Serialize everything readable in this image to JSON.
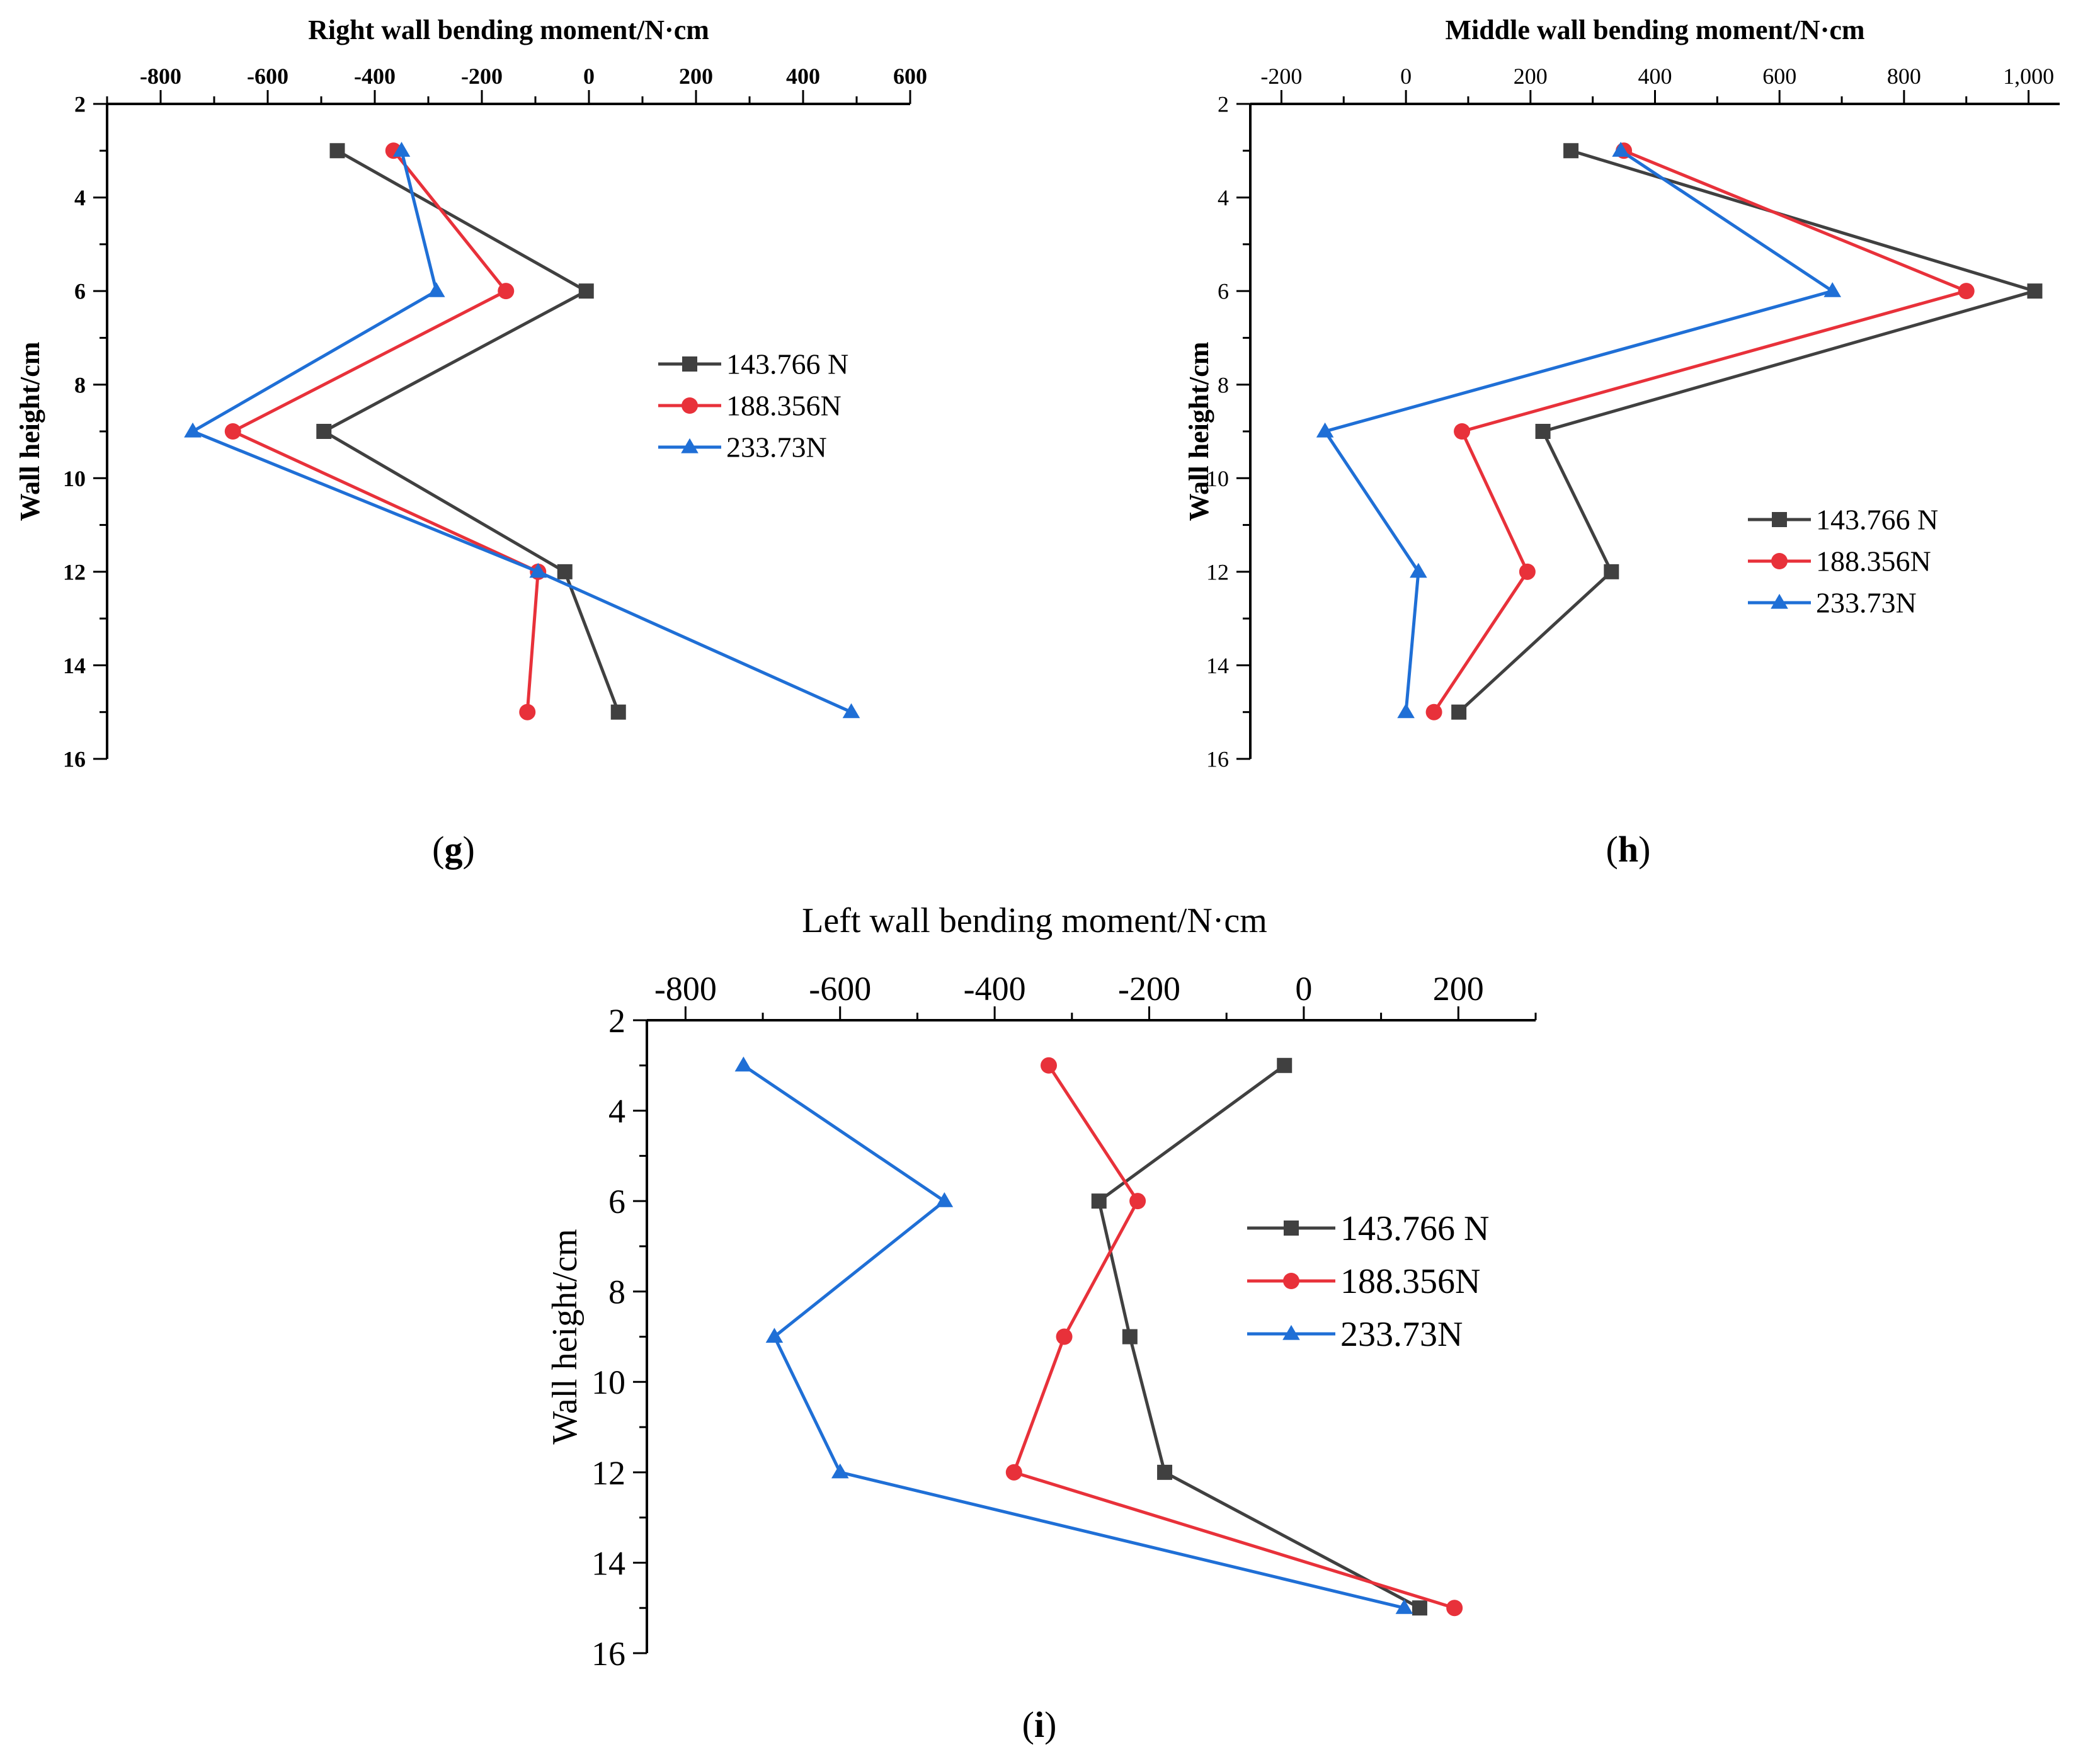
{
  "chart_data": [
    {
      "id": "g",
      "type": "line",
      "panel_label": "g",
      "title": "Right wall bending moment/N·cm",
      "xlabel": "Right wall bending moment/N·cm",
      "ylabel": "Wall height/cm",
      "xlim": [
        -900,
        600
      ],
      "ylim": [
        2,
        16
      ],
      "x_ticks": [
        -800,
        -600,
        -400,
        -200,
        0,
        200,
        400,
        600
      ],
      "x_tick_labels": [
        "-800",
        "-600",
        "-400",
        "-200",
        "0",
        "200",
        "400",
        "600"
      ],
      "y_ticks": [
        2,
        4,
        6,
        8,
        10,
        12,
        14,
        16
      ],
      "y_tick_labels": [
        "2",
        "4",
        "6",
        "8",
        "10",
        "12",
        "14",
        "16"
      ],
      "grid": false,
      "legend_position": "right-middle",
      "series": [
        {
          "name": "143.766 N",
          "color": "#404040",
          "marker": "square",
          "points": [
            [
              -470,
              3
            ],
            [
              -5,
              6
            ],
            [
              -495,
              9
            ],
            [
              -45,
              12
            ],
            [
              55,
              15
            ]
          ]
        },
        {
          "name": "188.356N",
          "color": "#e8313a",
          "marker": "circle",
          "points": [
            [
              -365,
              3
            ],
            [
              -155,
              6
            ],
            [
              -665,
              9
            ],
            [
              -95,
              12
            ],
            [
              -115,
              15
            ]
          ]
        },
        {
          "name": "233.73N",
          "color": "#1f6fd6",
          "marker": "triangle",
          "points": [
            [
              -350,
              3
            ],
            [
              -285,
              6
            ],
            [
              -740,
              9
            ],
            [
              -95,
              12
            ],
            [
              490,
              15
            ]
          ]
        }
      ]
    },
    {
      "id": "h",
      "type": "line",
      "panel_label": "h",
      "title": "Middle wall bending moment/N·cm",
      "xlabel": "Middle wall bending moment/N·cm",
      "ylabel": "Wall height/cm",
      "xlim": [
        -250,
        1050
      ],
      "ylim": [
        2,
        16
      ],
      "x_ticks": [
        -200,
        0,
        200,
        400,
        600,
        800,
        1000
      ],
      "x_tick_labels": [
        "-200",
        "0",
        "200",
        "400",
        "600",
        "800",
        "1,000"
      ],
      "y_ticks": [
        2,
        4,
        6,
        8,
        10,
        12,
        14,
        16
      ],
      "y_tick_labels": [
        "2",
        "4",
        "6",
        "8",
        "10",
        "12",
        "14",
        "16"
      ],
      "grid": false,
      "legend_position": "right-lower",
      "series": [
        {
          "name": "143.766 N",
          "color": "#404040",
          "marker": "square",
          "points": [
            [
              265,
              3
            ],
            [
              1010,
              6
            ],
            [
              220,
              9
            ],
            [
              330,
              12
            ],
            [
              85,
              15
            ]
          ]
        },
        {
          "name": "188.356N",
          "color": "#e8313a",
          "marker": "circle",
          "points": [
            [
              350,
              3
            ],
            [
              900,
              6
            ],
            [
              90,
              9
            ],
            [
              195,
              12
            ],
            [
              45,
              15
            ]
          ]
        },
        {
          "name": "233.73N",
          "color": "#1f6fd6",
          "marker": "triangle",
          "points": [
            [
              345,
              3
            ],
            [
              685,
              6
            ],
            [
              -130,
              9
            ],
            [
              20,
              12
            ],
            [
              0,
              15
            ]
          ]
        }
      ]
    },
    {
      "id": "i",
      "type": "line",
      "panel_label": "i",
      "title": "Left wall bending moment/N·cm",
      "xlabel": "Left wall bending moment/N·cm",
      "ylabel": "Wall height/cm",
      "xlim": [
        -850,
        300
      ],
      "ylim": [
        2,
        16
      ],
      "x_ticks": [
        -800,
        -600,
        -400,
        -200,
        0,
        200
      ],
      "x_tick_labels": [
        "-800",
        "-600",
        "-400",
        "-200",
        "0",
        "200"
      ],
      "y_ticks": [
        2,
        4,
        6,
        8,
        10,
        12,
        14,
        16
      ],
      "y_tick_labels": [
        "2",
        "4",
        "6",
        "8",
        "10",
        "12",
        "14",
        "16"
      ],
      "grid": false,
      "legend_position": "right-middle",
      "series": [
        {
          "name": "143.766 N",
          "color": "#404040",
          "marker": "square",
          "points": [
            [
              -25,
              3
            ],
            [
              -265,
              6
            ],
            [
              -225,
              9
            ],
            [
              -180,
              12
            ],
            [
              150,
              15
            ]
          ]
        },
        {
          "name": "188.356N",
          "color": "#e8313a",
          "marker": "circle",
          "points": [
            [
              -330,
              3
            ],
            [
              -215,
              6
            ],
            [
              -310,
              9
            ],
            [
              -375,
              12
            ],
            [
              195,
              15
            ]
          ]
        },
        {
          "name": "233.73N",
          "color": "#1f6fd6",
          "marker": "triangle",
          "points": [
            [
              -725,
              3
            ],
            [
              -465,
              6
            ],
            [
              -685,
              9
            ],
            [
              -600,
              12
            ],
            [
              130,
              15
            ]
          ]
        }
      ]
    }
  ]
}
